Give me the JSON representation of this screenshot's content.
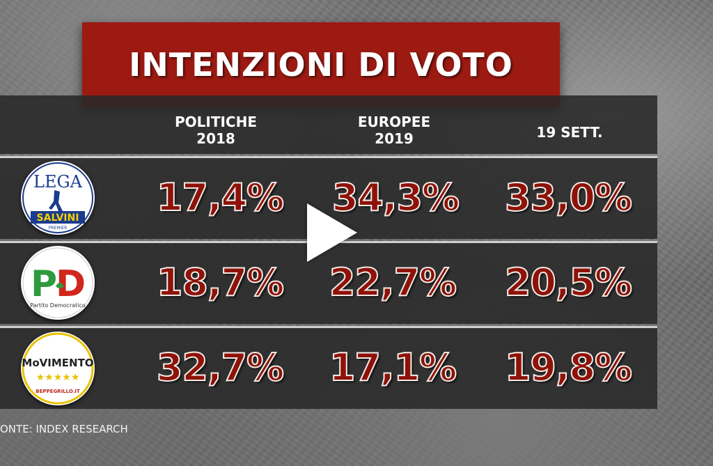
{
  "title": "INTENZIONI DI VOTO",
  "source": "ONTE: INDEX RESEARCH",
  "columns": [
    {
      "line1": "POLITICHE",
      "line2": "2018"
    },
    {
      "line1": "EUROPEE",
      "line2": "2019"
    },
    {
      "line1": "19 SETT.",
      "line2": ""
    }
  ],
  "logos": {
    "lega": {
      "top": "LEGA",
      "band": "SALVINI",
      "sub": "PREMIER"
    },
    "pd": {
      "mark": "PD",
      "sub": "Partito Democratico"
    },
    "m5s": {
      "name": "MoVIMENTO",
      "sub": "BEPPEGRILLO.IT"
    }
  },
  "colors": {
    "title_background": "#9c1a12",
    "value_fill": "#8e1208",
    "value_outline": "#f1ece8"
  },
  "chart_data": {
    "type": "table",
    "title": "INTENZIONI DI VOTO",
    "categories": [
      "POLITICHE 2018",
      "EUROPEE 2019",
      "19 SETT."
    ],
    "series": [
      {
        "name": "Lega Salvini Premier",
        "values": [
          17.4,
          34.3,
          33.0
        ]
      },
      {
        "name": "Partito Democratico",
        "values": [
          18.7,
          22.7,
          20.5
        ]
      },
      {
        "name": "MoVimento 5 Stelle",
        "values": [
          32.7,
          17.1,
          19.8
        ]
      }
    ],
    "value_labels": [
      [
        "17,4%",
        "34,3%",
        "33,0%"
      ],
      [
        "18,7%",
        "22,7%",
        "20,5%"
      ],
      [
        "32,7%",
        "17,1%",
        "19,8%"
      ]
    ],
    "unit": "%"
  }
}
